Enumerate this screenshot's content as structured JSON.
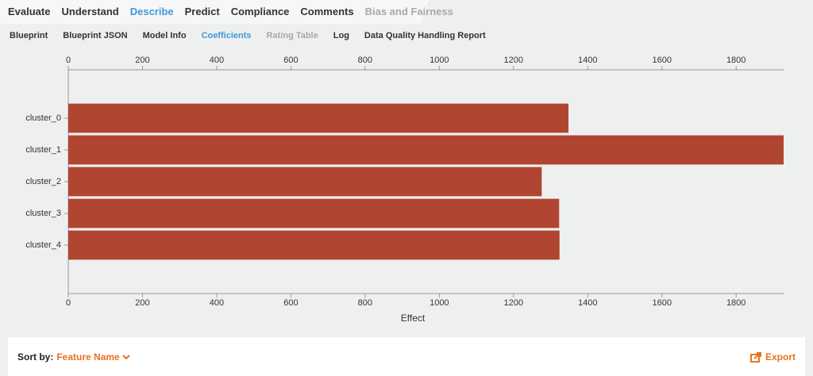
{
  "tabs": [
    "Evaluate",
    "Understand",
    "Describe",
    "Predict",
    "Compliance",
    "Comments",
    "Bias and Fairness"
  ],
  "subtabs": [
    "Blueprint",
    "Blueprint JSON",
    "Model Info",
    "Coefficients",
    "Rating Table",
    "Log",
    "Data Quality Handling Report"
  ],
  "chart_data": {
    "type": "bar",
    "orientation": "horizontal",
    "categories": [
      "cluster_0",
      "cluster_1",
      "cluster_2",
      "cluster_3",
      "cluster_4"
    ],
    "values": [
      1348,
      1928,
      1276,
      1323,
      1324
    ],
    "color": "#b04531",
    "xlim": [
      0,
      1928
    ],
    "xticks": [
      0,
      200,
      400,
      600,
      800,
      1000,
      1200,
      1400,
      1600,
      1800
    ],
    "xlabel": "Effect"
  },
  "sort": {
    "label": "Sort by:",
    "value": "Feature Name"
  },
  "export": "Export"
}
